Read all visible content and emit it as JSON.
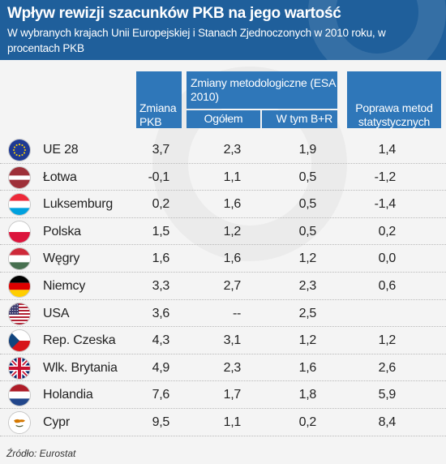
{
  "header": {
    "title": "Wpływ rewizji szacunków PKB na jego wartość",
    "subtitle": "W wybranych krajach Unii Europejskiej i Stanach Zjednoczonych w 2010 roku, w procentach PKB"
  },
  "table": {
    "col_zmiana": "Zmiana PKB",
    "col_metod": "Zmiany metodologiczne (ESA 2010)",
    "col_ogolem": "Ogółem",
    "col_wtym": "W tym B+R",
    "col_poprawa": "Poprawa metod statystycznych",
    "rows": [
      {
        "country": "UE 28",
        "flag": "eu-flag-icon",
        "zmiana": "3,7",
        "ogolem": "2,3",
        "wtym": "1,9",
        "poprawa": "1,4"
      },
      {
        "country": "Łotwa",
        "flag": "latvia-flag-icon",
        "zmiana": "-0,1",
        "ogolem": "1,1",
        "wtym": "0,5",
        "poprawa": "-1,2"
      },
      {
        "country": "Luksemburg",
        "flag": "luxembourg-flag-icon",
        "zmiana": "0,2",
        "ogolem": "1,6",
        "wtym": "0,5",
        "poprawa": "-1,4"
      },
      {
        "country": "Polska",
        "flag": "poland-flag-icon",
        "zmiana": "1,5",
        "ogolem": "1,2",
        "wtym": "0,5",
        "poprawa": "0,2"
      },
      {
        "country": "Węgry",
        "flag": "hungary-flag-icon",
        "zmiana": "1,6",
        "ogolem": "1,6",
        "wtym": "1,2",
        "poprawa": "0,0"
      },
      {
        "country": "Niemcy",
        "flag": "germany-flag-icon",
        "zmiana": "3,3",
        "ogolem": "2,7",
        "wtym": "2,3",
        "poprawa": "0,6"
      },
      {
        "country": "USA",
        "flag": "usa-flag-icon",
        "zmiana": "3,6",
        "ogolem": "--",
        "wtym": "2,5",
        "poprawa": ""
      },
      {
        "country": "Rep. Czeska",
        "flag": "czech-flag-icon",
        "zmiana": "4,3",
        "ogolem": "3,1",
        "wtym": "1,2",
        "poprawa": "1,2"
      },
      {
        "country": "Wlk. Brytania",
        "flag": "uk-flag-icon",
        "zmiana": "4,9",
        "ogolem": "2,3",
        "wtym": "1,6",
        "poprawa": "2,6"
      },
      {
        "country": "Holandia",
        "flag": "netherlands-flag-icon",
        "zmiana": "7,6",
        "ogolem": "1,7",
        "wtym": "1,8",
        "poprawa": "5,9"
      },
      {
        "country": "Cypr",
        "flag": "cyprus-flag-icon",
        "zmiana": "9,5",
        "ogolem": "1,1",
        "wtym": "0,2",
        "poprawa": "8,4"
      }
    ]
  },
  "source": "Źródło: Eurostat",
  "colors": {
    "header_bg": "#1f5f9b",
    "column_header_bg": "#2f77b9",
    "background": "#f4f4f4"
  }
}
